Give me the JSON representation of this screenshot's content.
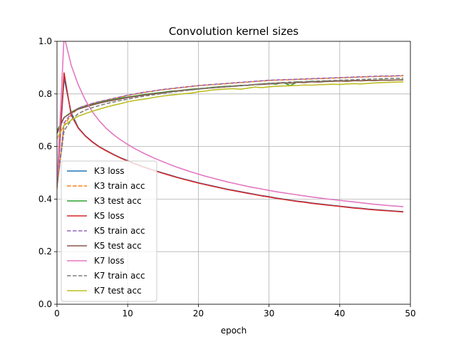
{
  "chart_data": {
    "type": "line",
    "title": "Convolution kernel sizes",
    "xlabel": "epoch",
    "ylabel": "",
    "xlim": [
      0,
      50
    ],
    "ylim": [
      0,
      1
    ],
    "xticks": [
      0,
      10,
      20,
      30,
      40,
      50
    ],
    "yticks": [
      0.0,
      0.2,
      0.4,
      0.6,
      0.8,
      1.0
    ],
    "xtick_labels": [
      "0",
      "10",
      "20",
      "30",
      "40",
      "50"
    ],
    "ytick_labels": [
      "0.0",
      "0.2",
      "0.4",
      "0.6",
      "0.8",
      "1.0"
    ],
    "grid": true,
    "legend_position": "lower-left",
    "x": [
      0,
      1,
      2,
      3,
      4,
      5,
      6,
      7,
      8,
      9,
      10,
      11,
      12,
      13,
      14,
      15,
      16,
      17,
      18,
      19,
      20,
      21,
      22,
      23,
      24,
      25,
      26,
      27,
      28,
      29,
      30,
      31,
      32,
      33,
      34,
      35,
      36,
      37,
      38,
      39,
      40,
      41,
      42,
      43,
      44,
      45,
      46,
      47,
      48,
      49
    ],
    "series": [
      {
        "name": "K3 loss",
        "color": "#1f77b4",
        "dash": "solid",
        "values": [
          0.46,
          0.86,
          0.73,
          0.672,
          0.641,
          0.618,
          0.599,
          0.584,
          0.57,
          0.557,
          0.546,
          0.535,
          0.525,
          0.516,
          0.507,
          0.499,
          0.491,
          0.483,
          0.476,
          0.469,
          0.462,
          0.456,
          0.45,
          0.444,
          0.438,
          0.433,
          0.428,
          0.423,
          0.418,
          0.413,
          0.409,
          0.404,
          0.4,
          0.396,
          0.392,
          0.389,
          0.385,
          0.382,
          0.379,
          0.376,
          0.373,
          0.37,
          0.367,
          0.365,
          0.362,
          0.36,
          0.358,
          0.356,
          0.354,
          0.352
        ]
      },
      {
        "name": "K3 train acc",
        "color": "#ff7f0e",
        "dash": "dashed",
        "values": [
          0.44,
          0.68,
          0.72,
          0.745,
          0.755,
          0.763,
          0.77,
          0.776,
          0.782,
          0.788,
          0.794,
          0.799,
          0.804,
          0.808,
          0.812,
          0.816,
          0.819,
          0.822,
          0.825,
          0.828,
          0.831,
          0.833,
          0.835,
          0.837,
          0.839,
          0.841,
          0.843,
          0.845,
          0.847,
          0.849,
          0.851,
          0.852,
          0.853,
          0.854,
          0.855,
          0.856,
          0.857,
          0.858,
          0.859,
          0.86,
          0.861,
          0.862,
          0.863,
          0.864,
          0.865,
          0.866,
          0.867,
          0.867,
          0.868,
          0.869
        ]
      },
      {
        "name": "K3 test acc",
        "color": "#2ca02c",
        "dash": "solid",
        "values": [
          0.66,
          0.71,
          0.73,
          0.745,
          0.752,
          0.76,
          0.768,
          0.774,
          0.778,
          0.784,
          0.788,
          0.792,
          0.796,
          0.8,
          0.803,
          0.806,
          0.81,
          0.812,
          0.815,
          0.818,
          0.82,
          0.822,
          0.825,
          0.827,
          0.829,
          0.83,
          0.833,
          0.832,
          0.836,
          0.838,
          0.84,
          0.837,
          0.844,
          0.831,
          0.846,
          0.844,
          0.848,
          0.846,
          0.849,
          0.848,
          0.85,
          0.849,
          0.851,
          0.85,
          0.852,
          0.851,
          0.853,
          0.852,
          0.853,
          0.854
        ]
      },
      {
        "name": "K5 loss",
        "color": "#d62728",
        "dash": "solid",
        "values": [
          0.45,
          0.88,
          0.72,
          0.67,
          0.64,
          0.617,
          0.598,
          0.583,
          0.569,
          0.556,
          0.545,
          0.534,
          0.524,
          0.515,
          0.506,
          0.498,
          0.49,
          0.482,
          0.475,
          0.468,
          0.461,
          0.455,
          0.449,
          0.443,
          0.437,
          0.432,
          0.427,
          0.422,
          0.417,
          0.412,
          0.408,
          0.403,
          0.399,
          0.395,
          0.391,
          0.388,
          0.384,
          0.381,
          0.378,
          0.375,
          0.372,
          0.369,
          0.366,
          0.364,
          0.361,
          0.359,
          0.357,
          0.355,
          0.353,
          0.351
        ]
      },
      {
        "name": "K5 train acc",
        "color": "#9467bd",
        "dash": "dashed",
        "values": [
          0.45,
          0.69,
          0.725,
          0.746,
          0.756,
          0.764,
          0.771,
          0.777,
          0.783,
          0.789,
          0.795,
          0.8,
          0.805,
          0.809,
          0.813,
          0.817,
          0.82,
          0.823,
          0.826,
          0.829,
          0.832,
          0.834,
          0.836,
          0.838,
          0.84,
          0.842,
          0.844,
          0.846,
          0.848,
          0.85,
          0.852,
          0.853,
          0.854,
          0.855,
          0.856,
          0.857,
          0.858,
          0.859,
          0.86,
          0.861,
          0.862,
          0.863,
          0.864,
          0.865,
          0.866,
          0.867,
          0.868,
          0.868,
          0.869,
          0.87
        ]
      },
      {
        "name": "K5 test acc",
        "color": "#8c564b",
        "dash": "solid",
        "values": [
          0.65,
          0.71,
          0.728,
          0.742,
          0.75,
          0.758,
          0.765,
          0.771,
          0.776,
          0.781,
          0.786,
          0.79,
          0.794,
          0.798,
          0.801,
          0.804,
          0.808,
          0.811,
          0.814,
          0.816,
          0.819,
          0.821,
          0.823,
          0.825,
          0.827,
          0.829,
          0.831,
          0.833,
          0.835,
          0.836,
          0.838,
          0.84,
          0.842,
          0.841,
          0.844,
          0.843,
          0.846,
          0.845,
          0.847,
          0.848,
          0.849,
          0.848,
          0.85,
          0.85,
          0.851,
          0.851,
          0.852,
          0.852,
          0.853,
          0.853
        ]
      },
      {
        "name": "K7 loss",
        "color": "#e377c2",
        "dash": "solid",
        "values": [
          0.45,
          1.02,
          0.91,
          0.835,
          0.777,
          0.732,
          0.697,
          0.668,
          0.645,
          0.625,
          0.608,
          0.592,
          0.578,
          0.565,
          0.553,
          0.542,
          0.531,
          0.521,
          0.512,
          0.503,
          0.495,
          0.487,
          0.48,
          0.473,
          0.466,
          0.46,
          0.454,
          0.448,
          0.443,
          0.438,
          0.433,
          0.428,
          0.424,
          0.42,
          0.416,
          0.412,
          0.408,
          0.405,
          0.401,
          0.398,
          0.395,
          0.392,
          0.389,
          0.386,
          0.383,
          0.38,
          0.378,
          0.375,
          0.373,
          0.371
        ]
      },
      {
        "name": "K7 train acc",
        "color": "#7f7f7f",
        "dash": "dashed",
        "values": [
          0.45,
          0.66,
          0.7,
          0.725,
          0.738,
          0.748,
          0.756,
          0.763,
          0.769,
          0.775,
          0.78,
          0.785,
          0.79,
          0.794,
          0.798,
          0.802,
          0.806,
          0.809,
          0.812,
          0.815,
          0.818,
          0.821,
          0.824,
          0.826,
          0.828,
          0.83,
          0.832,
          0.834,
          0.836,
          0.838,
          0.84,
          0.842,
          0.843,
          0.845,
          0.846,
          0.847,
          0.848,
          0.849,
          0.85,
          0.851,
          0.852,
          0.853,
          0.854,
          0.855,
          0.856,
          0.857,
          0.858,
          0.859,
          0.859,
          0.86
        ]
      },
      {
        "name": "K7 test acc",
        "color": "#bcbd22",
        "dash": "solid",
        "values": [
          0.63,
          0.68,
          0.7,
          0.715,
          0.725,
          0.734,
          0.742,
          0.75,
          0.757,
          0.763,
          0.77,
          0.775,
          0.779,
          0.783,
          0.788,
          0.792,
          0.795,
          0.798,
          0.801,
          0.803,
          0.808,
          0.811,
          0.815,
          0.817,
          0.819,
          0.82,
          0.818,
          0.822,
          0.826,
          0.824,
          0.827,
          0.829,
          0.83,
          0.831,
          0.832,
          0.834,
          0.833,
          0.835,
          0.836,
          0.837,
          0.836,
          0.838,
          0.839,
          0.838,
          0.84,
          0.842,
          0.843,
          0.844,
          0.845,
          0.846
        ]
      }
    ]
  }
}
